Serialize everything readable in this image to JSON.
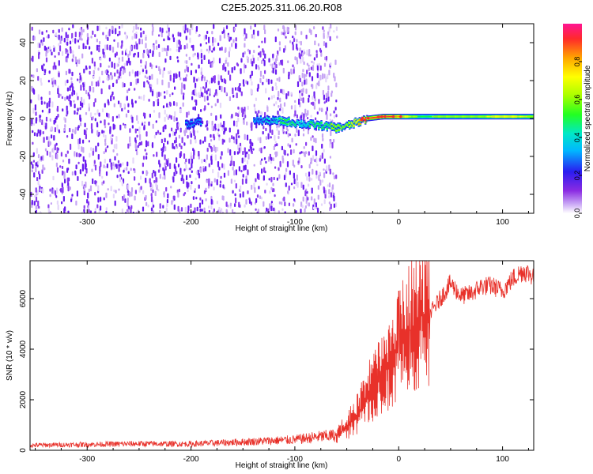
{
  "title": "C2E5.2025.311.06.20.R08",
  "chart_data": [
    {
      "type": "heatmap",
      "name": "spectrogram",
      "xlabel": "Height of straight line (km)",
      "ylabel": "Frequency (Hz)",
      "xlim": [
        -355,
        130
      ],
      "ylim": [
        -50,
        50
      ],
      "xticks": [
        -300,
        -200,
        -100,
        0,
        100
      ],
      "xtick_labels": [
        "-300",
        "-200",
        "-100",
        "0",
        "100"
      ],
      "yticks": [
        -40,
        -20,
        0,
        20,
        40
      ],
      "ytick_labels": [
        "-40",
        "-20",
        "0",
        "20",
        "40"
      ],
      "noise_extent_km": [
        -355,
        -60
      ],
      "signal_track": {
        "x": [
          -205,
          -195,
          -135,
          -110,
          -90,
          -70,
          -60,
          -50,
          -40,
          -30,
          -15,
          0,
          20,
          50,
          80,
          100,
          130
        ],
        "freq": [
          -3,
          -2,
          -1,
          -1.5,
          -3,
          -4,
          -5,
          -4,
          -2,
          0,
          1,
          1,
          1,
          1,
          1,
          1,
          1
        ],
        "amplitude": [
          0.25,
          0.25,
          0.3,
          0.45,
          0.4,
          0.5,
          0.55,
          0.6,
          0.7,
          0.85,
          0.9,
          0.8,
          0.5,
          0.55,
          0.6,
          0.7,
          0.6
        ]
      },
      "colorbar": {
        "label": "Normalized spectral amplitude",
        "range": [
          0,
          1
        ],
        "ticks": [
          0,
          0.2,
          0.4,
          0.6,
          0.8
        ],
        "tick_labels": [
          "0.0",
          "0.2",
          "0.4",
          "0.6",
          "0.8"
        ]
      }
    },
    {
      "type": "line",
      "name": "snr",
      "xlabel": "Height of straight line (km)",
      "ylabel": "SNR (10 * v/v)",
      "xlim": [
        -355,
        130
      ],
      "ylim": [
        0,
        7500
      ],
      "xticks": [
        -300,
        -200,
        -100,
        0,
        100
      ],
      "xtick_labels": [
        "-300",
        "-200",
        "-100",
        "0",
        "100"
      ],
      "yticks": [
        0,
        2000,
        4000,
        6000
      ],
      "ytick_labels": [
        "0",
        "2000",
        "4000",
        "6000"
      ],
      "color": "#e8312a",
      "series": [
        {
          "name": "SNR envelope",
          "x": [
            -355,
            -300,
            -250,
            -200,
            -150,
            -100,
            -80,
            -60,
            -50,
            -40,
            -30,
            -20,
            -10,
            0,
            10,
            20,
            30,
            40,
            50,
            60,
            70,
            80,
            90,
            100,
            110,
            120,
            130
          ],
          "y": [
            200,
            230,
            260,
            250,
            330,
            420,
            520,
            600,
            900,
            1400,
            2100,
            2900,
            3400,
            4000,
            4700,
            5300,
            5400,
            6000,
            6600,
            6100,
            6200,
            6500,
            6500,
            6300,
            6800,
            7100,
            6900
          ]
        }
      ]
    }
  ]
}
